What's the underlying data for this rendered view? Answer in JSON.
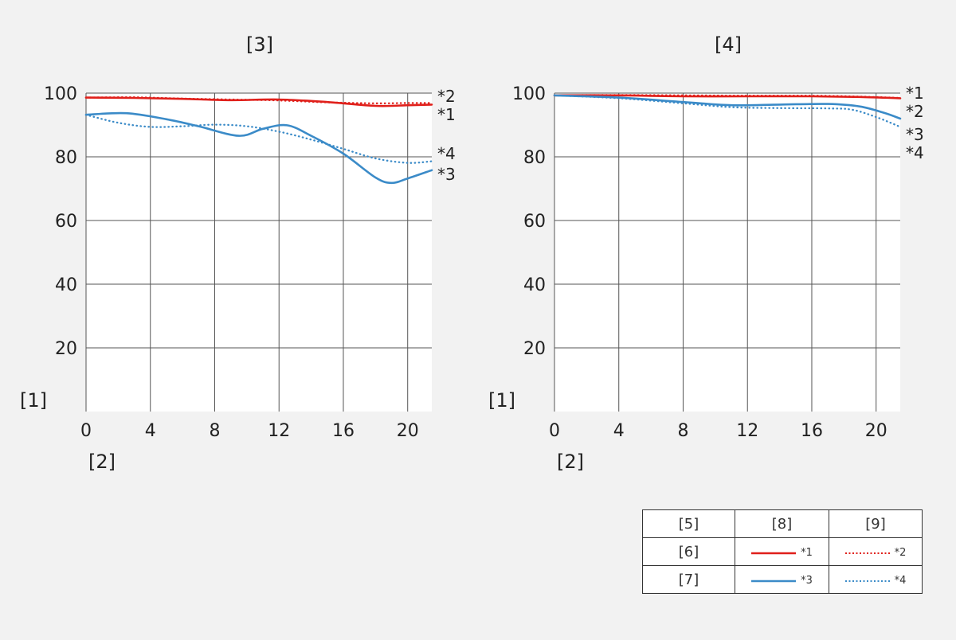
{
  "colors": {
    "red": "#e0201b",
    "blue": "#3b8bc8",
    "background": "#f2f2f2",
    "plot": "#ffffff",
    "grid": "#555555"
  },
  "chart_data": [
    {
      "type": "line",
      "title": "[3]",
      "ylabel": "[1]",
      "xlabel": "[2]",
      "xlim": [
        0,
        21.5
      ],
      "ylim": [
        0,
        100
      ],
      "xticks": [
        0,
        4,
        8,
        12,
        16,
        20
      ],
      "yticks": [
        20,
        40,
        60,
        80,
        100
      ],
      "grid": true,
      "series": [
        {
          "name": "*1",
          "color": "red",
          "style": "solid",
          "x": [
            0,
            3,
            6,
            9,
            12,
            15,
            18,
            20,
            21.5
          ],
          "y": [
            98.6,
            98.5,
            98.2,
            97.8,
            98.0,
            97.2,
            96.0,
            96.2,
            96.4
          ]
        },
        {
          "name": "*2",
          "color": "red",
          "style": "dotted",
          "x": [
            0,
            3,
            6,
            9,
            12,
            15,
            18,
            20,
            21.5
          ],
          "y": [
            98.6,
            98.7,
            98.3,
            98.0,
            97.7,
            97.1,
            96.8,
            96.9,
            96.9
          ]
        },
        {
          "name": "*3",
          "color": "blue",
          "style": "solid",
          "x": [
            0,
            2.5,
            5,
            7,
            9.5,
            11,
            12.5,
            14,
            16,
            18,
            19,
            20,
            21.5
          ],
          "y": [
            93.2,
            93.7,
            91.8,
            89.6,
            86.6,
            88.8,
            89.9,
            86.6,
            81.0,
            73.5,
            71.8,
            73.2,
            75.8
          ]
        },
        {
          "name": "*4",
          "color": "blue",
          "style": "dotted",
          "x": [
            0,
            2,
            4,
            6,
            8,
            10,
            12,
            14,
            16,
            18,
            20,
            21.5
          ],
          "y": [
            93.2,
            90.7,
            89.4,
            89.6,
            90.1,
            89.6,
            87.9,
            85.4,
            82.5,
            79.5,
            78.1,
            78.6
          ]
        }
      ],
      "end_labels": [
        "*2",
        "*1",
        "*4",
        "*3"
      ]
    },
    {
      "type": "line",
      "title": "[4]",
      "ylabel": "[1]",
      "xlabel": "[2]",
      "xlim": [
        0,
        21.5
      ],
      "ylim": [
        0,
        100
      ],
      "xticks": [
        0,
        4,
        8,
        12,
        16,
        20
      ],
      "yticks": [
        20,
        40,
        60,
        80,
        100
      ],
      "grid": true,
      "series": [
        {
          "name": "*1",
          "color": "red",
          "style": "solid",
          "x": [
            0,
            4,
            8,
            12,
            16,
            19,
            21.5
          ],
          "y": [
            99.3,
            99.3,
            99.0,
            99.0,
            99.0,
            98.8,
            98.4
          ]
        },
        {
          "name": "*2",
          "color": "red",
          "style": "dotted",
          "x": [
            0,
            4,
            8,
            12,
            16,
            19,
            21.5
          ],
          "y": [
            99.3,
            99.4,
            99.3,
            99.2,
            99.2,
            98.9,
            98.5
          ]
        },
        {
          "name": "*3",
          "color": "blue",
          "style": "solid",
          "x": [
            0,
            4,
            8,
            11,
            14,
            17,
            19,
            20.5,
            21.5
          ],
          "y": [
            99.3,
            98.6,
            97.2,
            96.2,
            96.4,
            96.6,
            95.8,
            93.8,
            92.0
          ]
        },
        {
          "name": "*4",
          "color": "blue",
          "style": "dotted",
          "x": [
            0,
            4,
            8,
            11,
            14,
            17,
            18.5,
            20,
            21.5
          ],
          "y": [
            99.3,
            98.4,
            96.8,
            95.6,
            95.3,
            95.2,
            94.8,
            92.5,
            89.4
          ]
        }
      ],
      "end_labels": [
        "*1",
        "*2",
        "*3",
        "*4"
      ]
    }
  ],
  "legend": {
    "headers": [
      "[5]",
      "[8]",
      "[9]"
    ],
    "rows": [
      {
        "label": "[6]",
        "solid": {
          "color": "red",
          "name": "*1"
        },
        "dotted": {
          "color": "red",
          "name": "*2"
        }
      },
      {
        "label": "[7]",
        "solid": {
          "color": "blue",
          "name": "*3"
        },
        "dotted": {
          "color": "blue",
          "name": "*4"
        }
      }
    ]
  }
}
